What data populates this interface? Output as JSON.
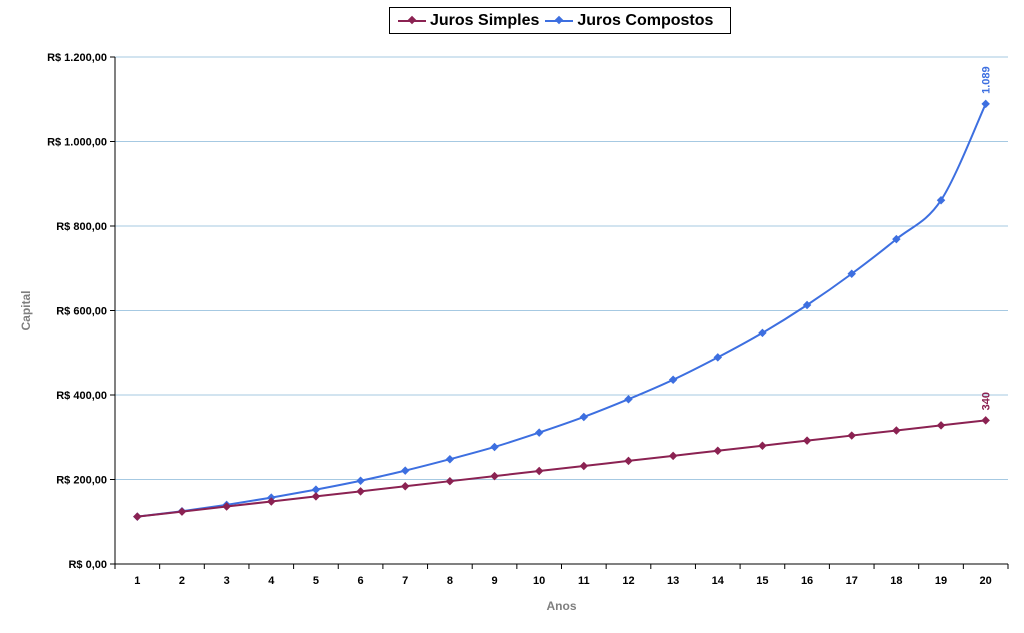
{
  "chart_data": {
    "type": "line",
    "title": "",
    "xlabel": "Anos",
    "ylabel": "Capital",
    "categories": [
      "1",
      "2",
      "3",
      "4",
      "5",
      "6",
      "7",
      "8",
      "9",
      "10",
      "11",
      "12",
      "13",
      "14",
      "15",
      "16",
      "17",
      "18",
      "19",
      "20"
    ],
    "ylim": [
      0,
      1200
    ],
    "yticks": [
      0,
      200,
      400,
      600,
      800,
      1000,
      1200
    ],
    "ytick_labels": [
      "R$ 0,00",
      "R$ 200,00",
      "R$ 400,00",
      "R$ 600,00",
      "R$ 800,00",
      "R$ 1.000,00",
      "R$ 1.200,00"
    ],
    "grid": "horizontal",
    "legend_position": "top-center",
    "series": [
      {
        "name": "Juros Simples",
        "color": "#8b2252",
        "values": [
          112,
          124,
          136,
          148,
          160,
          172,
          184,
          196,
          208,
          220,
          232,
          244,
          256,
          268,
          280,
          292,
          304,
          316,
          328,
          340
        ],
        "end_label": "340"
      },
      {
        "name": "Juros Compostos",
        "color": "#3d6fe0",
        "values": [
          112,
          125,
          140,
          157,
          176,
          197,
          221,
          248,
          277,
          311,
          348,
          390,
          436,
          489,
          547,
          613,
          687,
          769,
          861,
          1089
        ],
        "end_label": "1.089"
      }
    ]
  }
}
